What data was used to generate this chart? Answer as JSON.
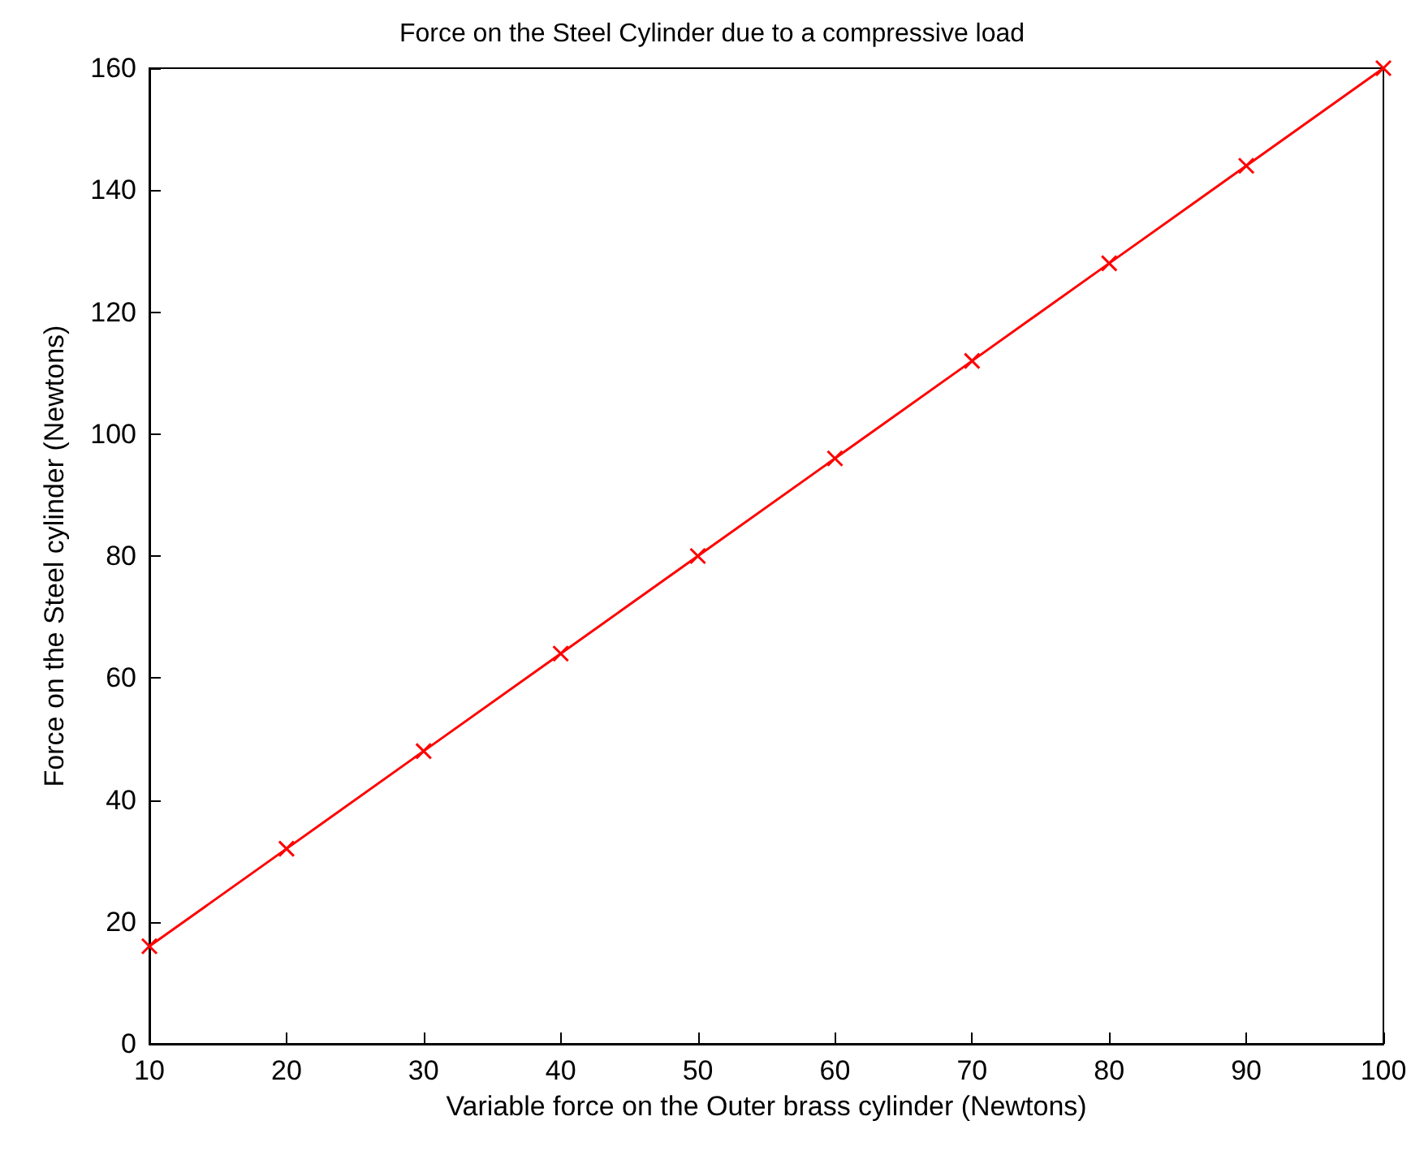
{
  "chart_data": {
    "type": "line",
    "title": "Force on the Steel Cylinder due to a compressive load",
    "xlabel": "Variable force on the Outer brass cylinder (Newtons)",
    "ylabel": "Force on the Steel cylinder (Newtons)",
    "x": [
      10,
      20,
      30,
      40,
      50,
      60,
      70,
      80,
      90,
      100
    ],
    "series": [
      {
        "color": "#ff0000",
        "values": [
          16,
          32,
          48,
          64,
          80,
          96,
          112,
          128,
          144,
          160
        ]
      }
    ],
    "xlim": [
      10,
      100
    ],
    "xticks": [
      10,
      20,
      30,
      40,
      50,
      60,
      70,
      80,
      90,
      100
    ],
    "ylim": [
      0,
      160
    ],
    "yticks": [
      0,
      20,
      40,
      60,
      80,
      100,
      120,
      140,
      160
    ],
    "grid": false,
    "marker": "cross",
    "line_style": "solid"
  }
}
